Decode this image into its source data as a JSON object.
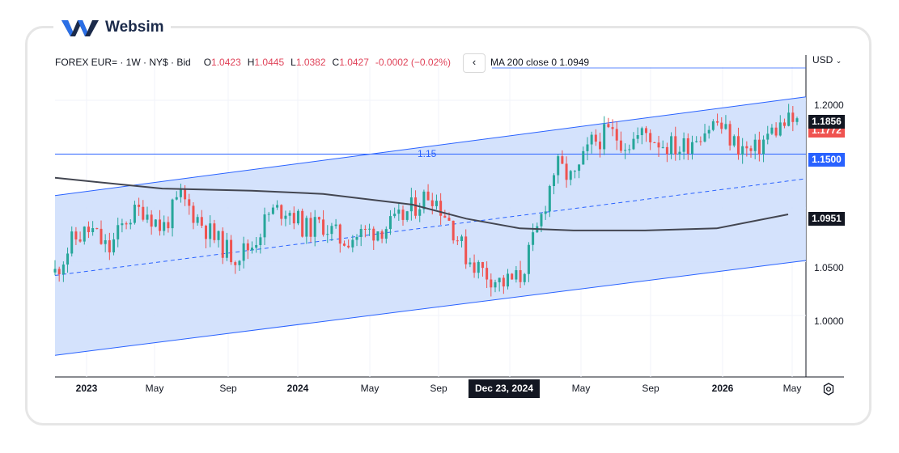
{
  "brand": {
    "name": "Websim",
    "colors": {
      "primary": "#1b2a4a",
      "accent": "#2b6fe6"
    }
  },
  "legend": {
    "symbol": "FOREX EUR= · 1W · NY$ · Bid",
    "open_label": "O",
    "open": "1.0423",
    "high_label": "H",
    "high": "1.0445",
    "low_label": "L",
    "low": "1.0382",
    "close_label": "C",
    "close": "1.0427",
    "change": "-0.0002 (−0.02%)",
    "collapse_icon": "‹",
    "ma_label": "MA 200 close 0",
    "ma_value": "1.0949"
  },
  "price_axis": {
    "currency": "USD",
    "currency_icon": "chevron-down-icon",
    "ticks": [
      "1.2000",
      "1.0500",
      "1.0000"
    ],
    "last_price": "1.1856",
    "bid_price": "1.1772",
    "level_price": "1.1500",
    "ma_price": "1.0951"
  },
  "time_axis": {
    "ticks": [
      {
        "label": "2023",
        "major": true
      },
      {
        "label": "May",
        "major": false
      },
      {
        "label": "Sep",
        "major": false
      },
      {
        "label": "2024",
        "major": true
      },
      {
        "label": "May",
        "major": false
      },
      {
        "label": "Sep",
        "major": false
      },
      {
        "label": "May",
        "major": false
      },
      {
        "label": "Sep",
        "major": false
      },
      {
        "label": "2026",
        "major": true
      },
      {
        "label": "May",
        "major": false
      }
    ],
    "cursor_label": "Dec 23, 2024"
  },
  "horizontal_line": {
    "label": "1.15"
  },
  "chart_data": {
    "type": "candlestick",
    "symbol": "EUR=",
    "interval": "1W",
    "ylim": [
      0.96,
      1.225
    ],
    "grid": true,
    "up_color": "#26a69a",
    "down_color": "#ef5350",
    "channel": {
      "upper": {
        "from": [
          "2022-12",
          1.1115
        ],
        "to": [
          "2026-05",
          1.201
        ]
      },
      "lower": {
        "from": [
          "2022-12",
          0.963
        ],
        "to": [
          "2026-05",
          1.049
        ]
      },
      "fill": "#cfdffc",
      "line_color": "#2962ff"
    },
    "horizontal_level": 1.15,
    "ma200": [
      [
        "2022-12",
        1.128
      ],
      [
        "2023-06",
        1.118
      ],
      [
        "2023-11",
        1.116
      ],
      [
        "2024-03",
        1.113
      ],
      [
        "2024-08",
        1.103
      ],
      [
        "2024-11",
        1.09
      ],
      [
        "2025-02",
        1.081
      ],
      [
        "2025-05",
        1.079
      ],
      [
        "2025-09",
        1.079
      ],
      [
        "2026-01",
        1.081
      ],
      [
        "2026-05",
        1.094
      ]
    ],
    "weekly_close_path": [
      [
        "2022-12",
        1.04
      ],
      [
        "2023-01",
        1.07
      ],
      [
        "2023-02",
        1.08
      ],
      [
        "2023-03",
        1.06
      ],
      [
        "2023-04",
        1.09
      ],
      [
        "2023-05",
        1.1
      ],
      [
        "2023-06",
        1.08
      ],
      [
        "2023-07",
        1.11
      ],
      [
        "2023-08",
        1.09
      ],
      [
        "2023-09",
        1.07
      ],
      [
        "2023-10",
        1.055
      ],
      [
        "2023-11",
        1.065
      ],
      [
        "2023-12",
        1.095
      ],
      [
        "2024-01",
        1.1
      ],
      [
        "2024-02",
        1.08
      ],
      [
        "2024-03",
        1.085
      ],
      [
        "2024-04",
        1.07
      ],
      [
        "2024-05",
        1.075
      ],
      [
        "2024-06",
        1.08
      ],
      [
        "2024-07",
        1.085
      ],
      [
        "2024-08",
        1.1
      ],
      [
        "2024-09",
        1.115
      ],
      [
        "2024-10",
        1.09
      ],
      [
        "2024-11",
        1.055
      ],
      [
        "2024-12",
        1.04
      ],
      [
        "2025-01",
        1.03
      ],
      [
        "2025-02",
        1.035
      ],
      [
        "2025-03",
        1.08
      ],
      [
        "2025-04",
        1.14
      ],
      [
        "2025-05",
        1.125
      ],
      [
        "2025-06",
        1.16
      ],
      [
        "2025-07",
        1.17
      ],
      [
        "2025-08",
        1.16
      ],
      [
        "2025-09",
        1.17
      ],
      [
        "2025-10",
        1.16
      ],
      [
        "2025-11",
        1.155
      ],
      [
        "2025-12",
        1.17
      ],
      [
        "2026-01",
        1.18
      ],
      [
        "2026-02",
        1.16
      ],
      [
        "2026-03",
        1.15
      ],
      [
        "2026-04",
        1.17
      ],
      [
        "2026-05",
        1.18
      ]
    ]
  }
}
